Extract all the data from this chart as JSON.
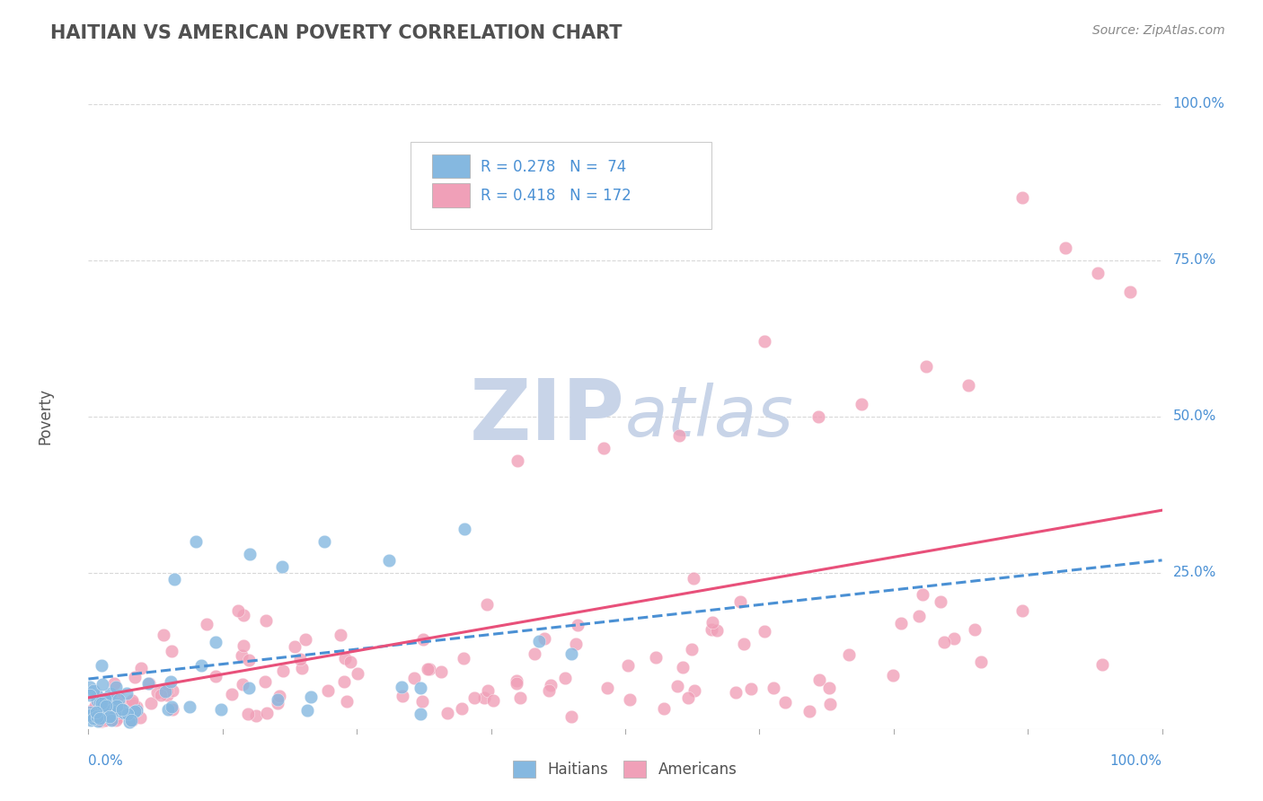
{
  "title": "HAITIAN VS AMERICAN POVERTY CORRELATION CHART",
  "source": "Source: ZipAtlas.com",
  "ylabel": "Poverty",
  "haitians_color": "#85b8e0",
  "americans_color": "#f0a0b8",
  "trend_haitian_color": "#4a90d4",
  "trend_american_color": "#e8507a",
  "watermark_zip_color": "#c8d4e8",
  "watermark_atlas_color": "#c8d4e8",
  "background_color": "#ffffff",
  "grid_color": "#d8d8d8",
  "title_color": "#505050",
  "axis_label_color": "#4a90d4",
  "legend_text_color": "#4a90d4",
  "haitian_N": 74,
  "american_N": 172,
  "haitian_R": 0.278,
  "american_R": 0.418,
  "ytick_labels": [
    "25.0%",
    "50.0%",
    "75.0%",
    "100.0%"
  ],
  "ytick_vals": [
    0.25,
    0.5,
    0.75,
    1.0
  ]
}
